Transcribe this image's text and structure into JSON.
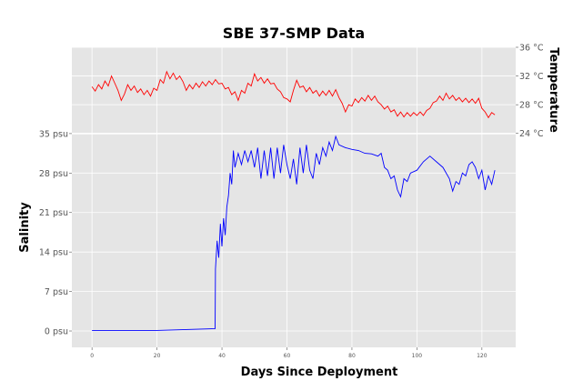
{
  "chart_data": {
    "type": "line",
    "title": "SBE 37-SMP Data",
    "xlabel": "Days Since Deployment",
    "ylabel": "Salinity",
    "y2label": "Temperature",
    "xlim": [
      -6.2,
      130.4
    ],
    "ylim": [
      -2.9,
      50.3
    ],
    "y2lim": [
      -5.8,
      36
    ],
    "xticks": [
      "0",
      "20",
      "40",
      "60",
      "80",
      "100",
      "120"
    ],
    "xtick_values": [
      0,
      20,
      40,
      60,
      80,
      100,
      120
    ],
    "yticks": [
      "0 psu",
      "7 psu",
      "14 psu",
      "21 psu",
      "28 psu",
      "35 psu"
    ],
    "ytick_values": [
      0,
      7,
      14,
      21,
      28,
      35
    ],
    "y2ticks": [
      "24 °C",
      "28 °C",
      "32 °C",
      "36 °C"
    ],
    "y2tick_values": [
      24,
      28,
      32,
      36
    ],
    "grid": true,
    "colors": {
      "salinity": "#0000ff",
      "temperature": "#ff0000",
      "background": "#e5e5e5"
    },
    "series": [
      {
        "axis": "left",
        "color": "#0000ff",
        "points": [
          [
            0,
            0.1
          ],
          [
            20,
            0.1
          ],
          [
            37.9,
            0.4
          ],
          [
            38,
            11
          ],
          [
            38.5,
            16
          ],
          [
            39,
            13
          ],
          [
            39.5,
            19
          ],
          [
            40,
            15
          ],
          [
            40.5,
            20
          ],
          [
            41,
            17
          ],
          [
            41.5,
            22
          ],
          [
            42,
            24
          ],
          [
            42.5,
            28
          ],
          [
            43,
            26
          ],
          [
            43.5,
            32
          ],
          [
            44,
            29
          ],
          [
            45,
            31.5
          ],
          [
            46,
            29.5
          ],
          [
            47,
            32
          ],
          [
            48,
            30
          ],
          [
            49,
            32
          ],
          [
            50,
            29
          ],
          [
            51,
            32.5
          ],
          [
            52,
            27
          ],
          [
            53,
            32
          ],
          [
            54,
            27.5
          ],
          [
            55,
            32.5
          ],
          [
            56,
            27
          ],
          [
            57,
            32.5
          ],
          [
            58,
            28
          ],
          [
            59,
            33
          ],
          [
            60,
            29.5
          ],
          [
            61,
            27
          ],
          [
            62,
            30.5
          ],
          [
            63,
            26
          ],
          [
            64,
            32.5
          ],
          [
            65,
            28
          ],
          [
            66,
            33
          ],
          [
            67,
            28.5
          ],
          [
            68,
            27
          ],
          [
            69,
            31.5
          ],
          [
            70,
            29.5
          ],
          [
            71,
            32.5
          ],
          [
            72,
            31
          ],
          [
            73,
            33.5
          ],
          [
            74,
            32
          ],
          [
            75,
            34.5
          ],
          [
            76,
            33
          ],
          [
            78,
            32.5
          ],
          [
            80,
            32.2
          ],
          [
            82,
            32
          ],
          [
            84,
            31.5
          ],
          [
            86,
            31.4
          ],
          [
            88,
            31
          ],
          [
            89,
            31.5
          ],
          [
            90,
            29
          ],
          [
            91,
            28.5
          ],
          [
            92,
            27
          ],
          [
            93,
            27.5
          ],
          [
            94,
            25
          ],
          [
            95,
            23.8
          ],
          [
            96,
            27
          ],
          [
            97,
            26.5
          ],
          [
            98,
            28
          ],
          [
            100,
            28.5
          ],
          [
            102,
            30
          ],
          [
            104,
            31
          ],
          [
            106,
            30
          ],
          [
            108,
            29
          ],
          [
            110,
            27
          ],
          [
            111,
            24.8
          ],
          [
            112,
            26.5
          ],
          [
            113,
            26
          ],
          [
            114,
            28
          ],
          [
            115,
            27.5
          ],
          [
            116,
            29.5
          ],
          [
            117,
            30
          ],
          [
            118,
            29
          ],
          [
            119,
            27
          ],
          [
            120,
            28.5
          ],
          [
            121,
            25
          ],
          [
            122,
            27.5
          ],
          [
            123,
            26
          ],
          [
            124,
            28.5
          ]
        ]
      },
      {
        "axis": "right",
        "color": "#ff0000",
        "x_start": 0,
        "x_step": 1,
        "values": [
          30.5,
          29.9,
          30.8,
          30.2,
          31.3,
          30.6,
          32.0,
          31.0,
          30.0,
          28.6,
          29.5,
          30.8,
          30.0,
          30.6,
          29.7,
          30.2,
          29.4,
          30.0,
          29.2,
          30.3,
          30.0,
          31.5,
          31.0,
          32.6,
          31.6,
          32.4,
          31.5,
          32.0,
          31.2,
          30.0,
          30.8,
          30.2,
          31.0,
          30.4,
          31.2,
          30.6,
          31.3,
          30.8,
          31.5,
          30.9,
          31.0,
          30.2,
          30.4,
          29.4,
          29.8,
          28.6,
          30.0,
          29.6,
          31.0,
          30.6,
          32.3,
          31.3,
          31.8,
          31.0,
          31.6,
          30.9,
          31.0,
          30.2,
          29.8,
          29.0,
          28.8,
          28.4,
          30.0,
          31.4,
          30.4,
          30.6,
          29.8,
          30.4,
          29.6,
          30.0,
          29.2,
          29.9,
          29.3,
          30.0,
          29.2,
          30.1,
          29.0,
          28.2,
          27.0,
          28.0,
          27.8,
          28.8,
          28.3,
          29.0,
          28.5,
          29.3,
          28.6,
          29.2,
          28.4,
          28.0,
          27.4,
          27.8,
          27.0,
          27.3,
          26.4,
          27.0,
          26.3,
          26.9,
          26.4,
          26.9,
          26.5,
          27.0,
          26.5,
          27.2,
          27.5,
          28.3,
          28.5,
          29.2,
          28.6,
          29.6,
          28.8,
          29.3,
          28.6,
          29.0,
          28.4,
          28.9,
          28.3,
          28.8,
          28.2,
          28.9,
          27.5,
          27.0,
          26.2,
          26.9,
          26.6
        ]
      }
    ]
  }
}
